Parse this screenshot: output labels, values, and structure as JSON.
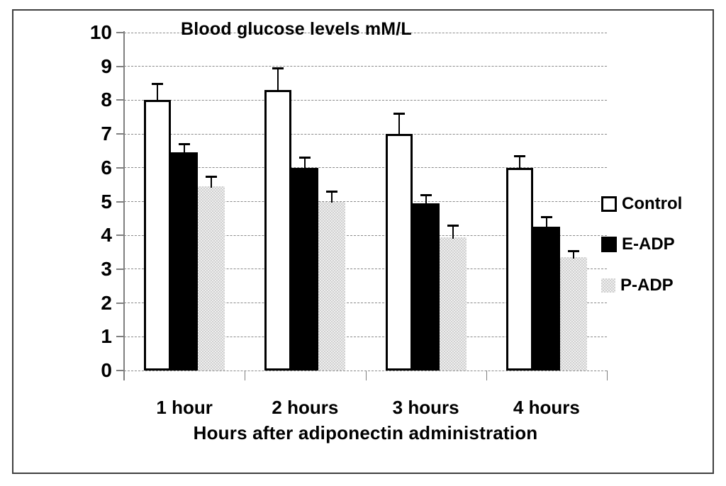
{
  "figure": {
    "background": "#ffffff",
    "border_color": "#3f3f3f"
  },
  "chart_data": {
    "type": "bar",
    "title": "Blood glucose levels mM/L",
    "xlabel": "Hours after adiponectin administration",
    "ylabel": "",
    "categories": [
      "1 hour",
      "2 hours",
      "3 hours",
      "4 hours"
    ],
    "series": [
      {
        "name": "Control",
        "fill": "#ffffff",
        "style": "white-outlined",
        "values": [
          8.0,
          8.3,
          7.0,
          6.0
        ],
        "errors": [
          0.5,
          0.65,
          0.6,
          0.35
        ]
      },
      {
        "name": "E-ADP",
        "fill": "#000000",
        "style": "solid-black",
        "values": [
          6.45,
          6.0,
          4.95,
          4.25
        ],
        "errors": [
          0.25,
          0.3,
          0.25,
          0.3
        ]
      },
      {
        "name": "P-ADP",
        "fill": "#dcdcdc",
        "style": "gray-checker",
        "values": [
          5.45,
          5.0,
          3.95,
          3.35
        ],
        "errors": [
          0.3,
          0.3,
          0.35,
          0.2
        ]
      }
    ],
    "ylim": [
      0,
      10
    ],
    "ytick_labels": [
      "0",
      "1",
      "2",
      "3",
      "4",
      "5",
      "6",
      "7",
      "8",
      "9",
      "10"
    ],
    "grid": "horizontal-dashed",
    "legend_position": "right",
    "error_bars": "upper-only",
    "colors": {
      "gridline": "#8a8a8a",
      "axis": "#7f7f7f",
      "error_bar": "#000000"
    }
  }
}
